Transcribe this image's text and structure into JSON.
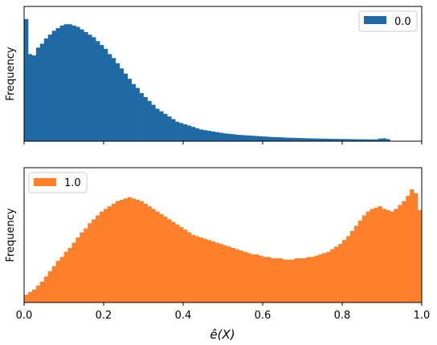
{
  "chart_data": {
    "type": "bar",
    "layout": "two vertically stacked histogram panels sharing the x-axis",
    "shared_xlabel": "ê(X)",
    "xlim": [
      0,
      1
    ],
    "x_ticks": [
      "0.0",
      "0.2",
      "0.4",
      "0.6",
      "0.8",
      "1.0"
    ],
    "grid": false,
    "bin_edges_range": [
      0,
      1
    ],
    "panels": [
      {
        "ylabel": "Frequency",
        "y_ticks_visible": false,
        "ymax": 1.0,
        "legend": {
          "label": "0.0",
          "position": "top-right"
        },
        "color": "#1f6aa5",
        "series": [
          {
            "name": "0.0",
            "values": [
              0.94,
              0.67,
              0.66,
              0.72,
              0.75,
              0.79,
              0.82,
              0.85,
              0.87,
              0.89,
              0.9,
              0.9,
              0.89,
              0.88,
              0.86,
              0.84,
              0.82,
              0.8,
              0.77,
              0.74,
              0.71,
              0.67,
              0.64,
              0.6,
              0.56,
              0.52,
              0.48,
              0.44,
              0.41,
              0.37,
              0.34,
              0.31,
              0.28,
              0.25,
              0.23,
              0.21,
              0.19,
              0.17,
              0.15,
              0.14,
              0.13,
              0.12,
              0.11,
              0.1,
              0.09,
              0.085,
              0.08,
              0.075,
              0.07,
              0.065,
              0.06,
              0.057,
              0.054,
              0.05,
              0.048,
              0.046,
              0.044,
              0.042,
              0.04,
              0.038,
              0.036,
              0.034,
              0.032,
              0.031,
              0.03,
              0.028,
              0.027,
              0.026,
              0.025,
              0.024,
              0.023,
              0.022,
              0.021,
              0.021,
              0.02,
              0.02,
              0.019,
              0.018,
              0.018,
              0.017,
              0.017,
              0.016,
              0.016,
              0.015,
              0.015,
              0.015,
              0.014,
              0.014,
              0.014,
              0.02,
              0.022,
              0.016,
              0,
              0,
              0,
              0,
              0,
              0,
              0,
              0
            ]
          }
        ]
      },
      {
        "ylabel": "Frequency",
        "y_ticks_visible": false,
        "ymax": 1.0,
        "legend": {
          "label": "1.0",
          "position": "top-left"
        },
        "color": "#ff7f2a",
        "series": [
          {
            "name": "1.0",
            "values": [
              0.06,
              0.08,
              0.1,
              0.13,
              0.16,
              0.2,
              0.24,
              0.28,
              0.32,
              0.35,
              0.39,
              0.42,
              0.46,
              0.5,
              0.54,
              0.57,
              0.61,
              0.64,
              0.67,
              0.7,
              0.72,
              0.74,
              0.76,
              0.78,
              0.79,
              0.8,
              0.81,
              0.8,
              0.79,
              0.78,
              0.76,
              0.74,
              0.72,
              0.7,
              0.68,
              0.66,
              0.64,
              0.62,
              0.6,
              0.58,
              0.56,
              0.54,
              0.52,
              0.51,
              0.5,
              0.49,
              0.48,
              0.47,
              0.46,
              0.45,
              0.44,
              0.43,
              0.42,
              0.41,
              0.4,
              0.39,
              0.38,
              0.37,
              0.37,
              0.36,
              0.35,
              0.35,
              0.34,
              0.34,
              0.34,
              0.33,
              0.33,
              0.33,
              0.34,
              0.34,
              0.34,
              0.35,
              0.35,
              0.36,
              0.37,
              0.38,
              0.39,
              0.41,
              0.43,
              0.45,
              0.48,
              0.51,
              0.55,
              0.59,
              0.63,
              0.67,
              0.7,
              0.72,
              0.73,
              0.74,
              0.72,
              0.71,
              0.7,
              0.72,
              0.75,
              0.78,
              0.82,
              0.87,
              0.84,
              0.71
            ]
          }
        ]
      }
    ]
  }
}
